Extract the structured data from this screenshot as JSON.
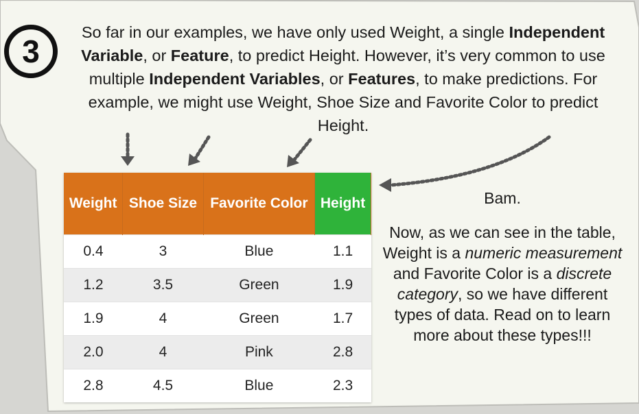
{
  "step_number": "3",
  "intro": {
    "parts": [
      {
        "text": "So far in our examples, we have only used Weight, a single ",
        "bold": false
      },
      {
        "text": "Independent Variable",
        "bold": true
      },
      {
        "text": ", or ",
        "bold": false
      },
      {
        "text": "Feature",
        "bold": true
      },
      {
        "text": ", to predict Height. However, it’s very common to use multiple ",
        "bold": false
      },
      {
        "text": "Independent Variables",
        "bold": true
      },
      {
        "text": ", or ",
        "bold": false
      },
      {
        "text": "Features",
        "bold": true
      },
      {
        "text": ", to make predictions. For example, we might use Weight, Shoe Size and Favorite Color to predict Height.",
        "bold": false
      }
    ]
  },
  "table": {
    "headers": [
      {
        "label": "Weight",
        "color": "#d9721a"
      },
      {
        "label": "Shoe Size",
        "color": "#d9721a"
      },
      {
        "label": "Favorite Color",
        "color": "#d9721a"
      },
      {
        "label": "Height",
        "color": "#2fb33a"
      }
    ],
    "rows": [
      [
        "0.4",
        "3",
        "Blue",
        "1.1"
      ],
      [
        "1.2",
        "3.5",
        "Green",
        "1.9"
      ],
      [
        "1.9",
        "4",
        "Green",
        "1.7"
      ],
      [
        "2.0",
        "4",
        "Pink",
        "2.8"
      ],
      [
        "2.8",
        "4.5",
        "Blue",
        "2.3"
      ]
    ]
  },
  "side_note": {
    "bam": "Bam.",
    "parts": [
      {
        "text": "Now, as we can see in the table, Weight is a ",
        "italic": false
      },
      {
        "text": "numeric measurement",
        "italic": true
      },
      {
        "text": " and Favorite Color is a ",
        "italic": false
      },
      {
        "text": "discrete category",
        "italic": true
      },
      {
        "text": ", so we have different types of data. Read on to learn more about these types!!!",
        "italic": false
      }
    ]
  },
  "colors": {
    "panel": "#f5f6ef",
    "header_feature": "#d9721a",
    "header_target": "#2fb33a"
  }
}
